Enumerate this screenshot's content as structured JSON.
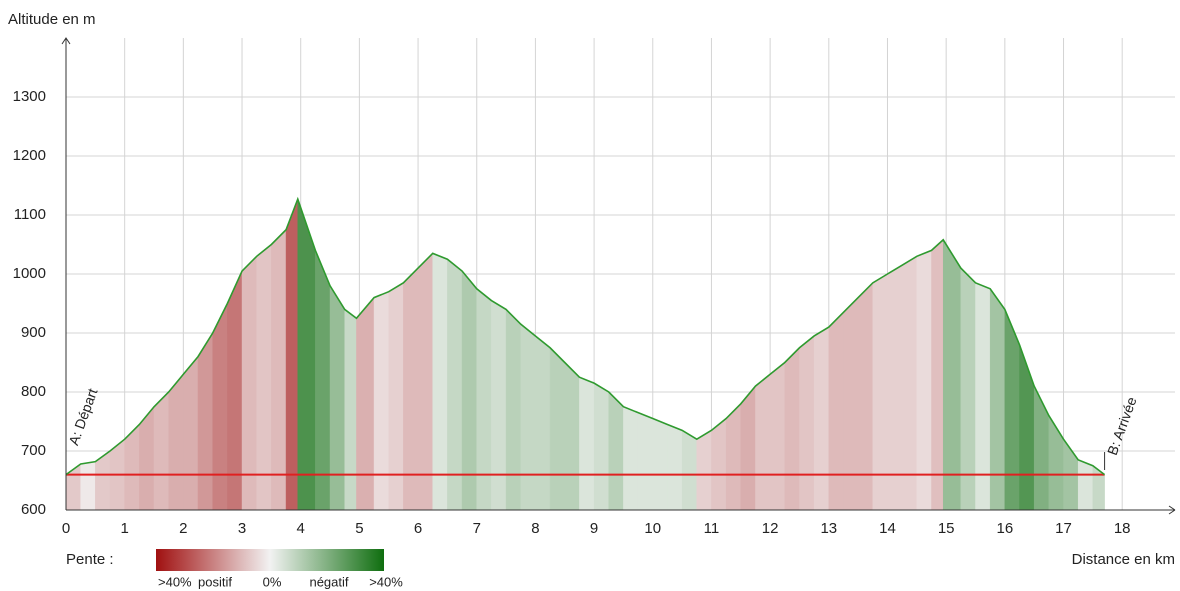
{
  "chart_data": {
    "type": "area",
    "y_label": "Altitude en m",
    "x_label": "Distance en km",
    "x": [
      0,
      0.25,
      0.5,
      0.75,
      1.0,
      1.25,
      1.5,
      1.75,
      2.0,
      2.25,
      2.5,
      2.75,
      3.0,
      3.25,
      3.5,
      3.75,
      3.95,
      4.25,
      4.5,
      4.75,
      4.95,
      5.25,
      5.5,
      5.75,
      6.0,
      6.25,
      6.5,
      6.75,
      7.0,
      7.25,
      7.5,
      7.75,
      8.0,
      8.25,
      8.5,
      8.75,
      9.0,
      9.25,
      9.5,
      9.75,
      10.0,
      10.25,
      10.5,
      10.75,
      11.0,
      11.25,
      11.5,
      11.75,
      12.0,
      12.25,
      12.5,
      12.75,
      13.0,
      13.25,
      13.5,
      13.75,
      14.0,
      14.25,
      14.5,
      14.75,
      14.95,
      15.25,
      15.5,
      15.75,
      16.0,
      16.25,
      16.5,
      16.75,
      17.0,
      17.25,
      17.5,
      17.7
    ],
    "series": [
      {
        "color": "#2f9a2f",
        "values": [
          660,
          678,
          682,
          700,
          720,
          745,
          775,
          800,
          830,
          860,
          900,
          950,
          1005,
          1030,
          1050,
          1075,
          1127,
          1040,
          980,
          940,
          925,
          960,
          970,
          985,
          1010,
          1035,
          1025,
          1005,
          975,
          955,
          940,
          915,
          895,
          875,
          850,
          825,
          815,
          800,
          775,
          765,
          755,
          745,
          735,
          720,
          735,
          755,
          780,
          810,
          830,
          850,
          875,
          895,
          910,
          935,
          960,
          985,
          1000,
          1015,
          1030,
          1040,
          1058,
          1010,
          985,
          975,
          940,
          880,
          810,
          760,
          720,
          685,
          675,
          660
        ]
      }
    ],
    "baseline": {
      "value": 660,
      "x": [
        0,
        17.7
      ],
      "color": "#e02020"
    },
    "annotations": [
      {
        "text": "A: Départ",
        "x": 0
      },
      {
        "text": "B: Arrivée",
        "x": 17.7
      }
    ],
    "xlim": [
      0,
      18.9
    ],
    "ylim": [
      600,
      1400
    ],
    "xticks": [
      0,
      1,
      2,
      3,
      4,
      5,
      6,
      7,
      8,
      9,
      10,
      11,
      12,
      13,
      14,
      15,
      16,
      17,
      18
    ],
    "yticks": [
      600,
      700,
      800,
      900,
      1000,
      1100,
      1200,
      1300
    ],
    "grid": true,
    "slope_legend": {
      "title": "Pente :",
      "labels": [
        ">40%",
        "positif",
        "0%",
        "négatif",
        ">40%"
      ],
      "colors": [
        "#a01010",
        "#f2f2f2",
        "#0f6e0f"
      ]
    }
  }
}
